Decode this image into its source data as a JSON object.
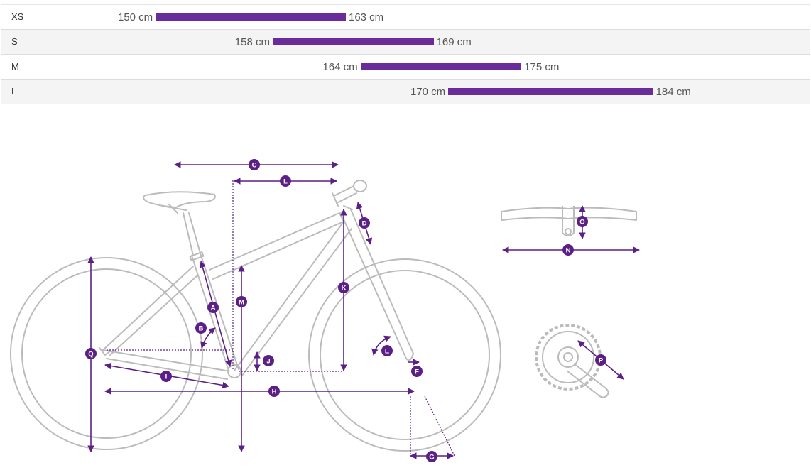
{
  "size_chart": {
    "axis_min": 148,
    "axis_max": 188,
    "rows": [
      {
        "size": "XS",
        "min": 150,
        "max": 163,
        "min_label": "150 cm",
        "max_label": "163 cm"
      },
      {
        "size": "S",
        "min": 158,
        "max": 169,
        "min_label": "158 cm",
        "max_label": "169 cm"
      },
      {
        "size": "M",
        "min": 164,
        "max": 175,
        "min_label": "164 cm",
        "max_label": "175 cm"
      },
      {
        "size": "L",
        "min": 170,
        "max": 184,
        "min_label": "170 cm",
        "max_label": "184 cm"
      }
    ]
  },
  "colors": {
    "bar": "#6a2c9a",
    "marker": "#5b1f86",
    "outline": "#bbbbbb",
    "row_alt": "#f4f4f4"
  },
  "geometry_labels": {
    "a": "A",
    "b": "B",
    "c": "C",
    "d": "D",
    "e": "E",
    "f": "F",
    "g": "G",
    "h": "H",
    "i": "I",
    "j": "J",
    "k": "K",
    "l": "L",
    "m": "M",
    "n": "N",
    "o": "O",
    "p": "P",
    "q": "Q"
  },
  "icons": [
    "bicycle-frame-outline",
    "handlebar-outline",
    "crankset-outline"
  ]
}
